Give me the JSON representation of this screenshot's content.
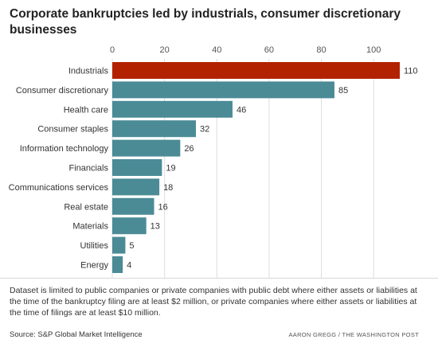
{
  "title": "Corporate bankruptcies led by industrials, consumer discretionary businesses",
  "note": "Dataset is limited to public companies or private companies with public debt where either assets or liabilities at the time of the bankruptcy filing are at least $2 million, or private companies where either assets or liabilities at the time of filings are at least $10 million.",
  "source": "Source: S&P Global Market Intelligence",
  "credit": "AARON GREGG / THE WASHINGTON POST",
  "colors": {
    "highlight": "#b22200",
    "bar": "#4a8b96",
    "grid": "#dddddd"
  },
  "chart_data": {
    "type": "bar",
    "orientation": "horizontal",
    "title": "Corporate bankruptcies led by industrials, consumer discretionary businesses",
    "categories": [
      "Industrials",
      "Consumer discretionary",
      "Health care",
      "Consumer staples",
      "Information technology",
      "Financials",
      "Communications services",
      "Real estate",
      "Materials",
      "Utilities",
      "Energy"
    ],
    "values": [
      110,
      85,
      46,
      32,
      26,
      19,
      18,
      16,
      13,
      5,
      4
    ],
    "highlight": [
      "Industrials"
    ],
    "xlim": [
      0,
      110
    ],
    "xticks": [
      0,
      20,
      40,
      60,
      80,
      100
    ],
    "xlabel": "",
    "ylabel": "",
    "grid": true,
    "legend": "none"
  }
}
